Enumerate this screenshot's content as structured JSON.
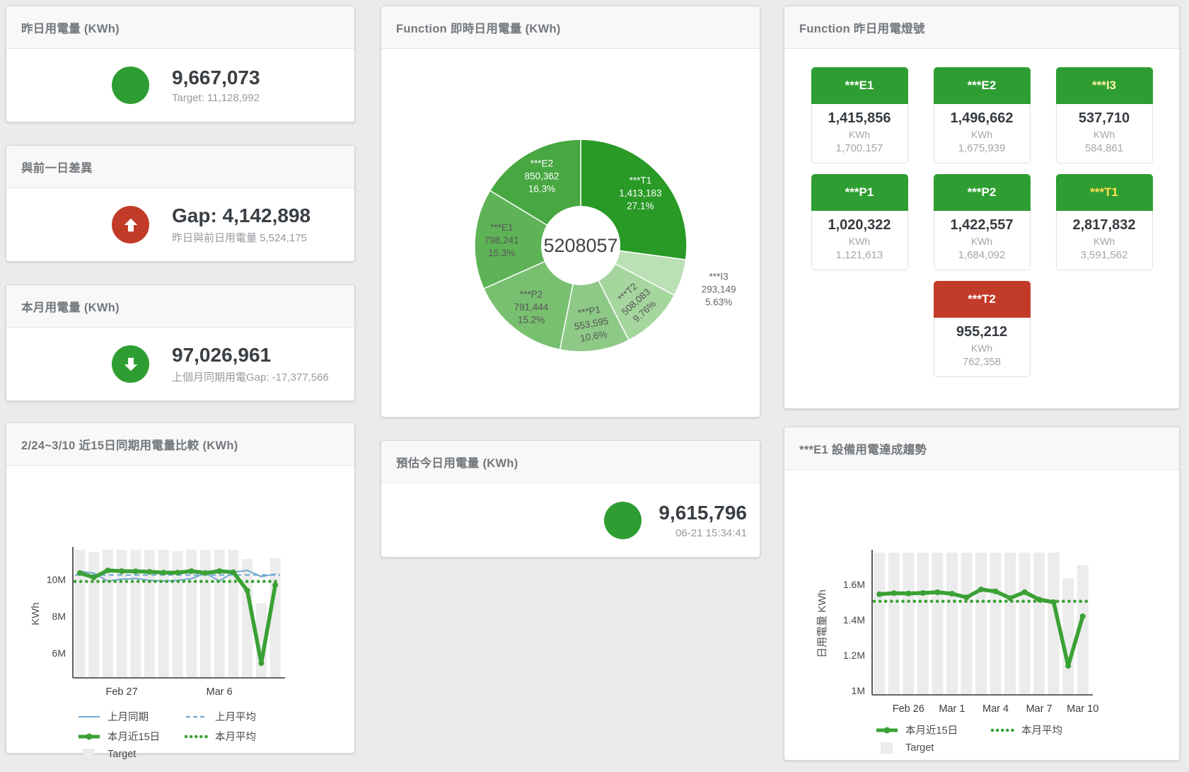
{
  "page": {
    "background": "#ebebeb"
  },
  "colors": {
    "green": "#2f9e32",
    "red": "#c13b28",
    "blue_line": "#6fa8d2",
    "green_line": "#3aa135",
    "bar_gray": "#ececec"
  },
  "cards": {
    "yesterday": {
      "title": "昨日用電量 (KWh)",
      "value": "9,667,073",
      "subtitle": "Target: 11,128,992"
    },
    "day_gap": {
      "title": "與前一日差異",
      "value": "Gap: 4,142,898",
      "subtitle": "昨日與前日用電量 5,524,175"
    },
    "month": {
      "title": "本月用電量 (KWh)",
      "value": "97,026,961",
      "subtitle": "上個月同期用電Gap: -17,377,566"
    },
    "estimate": {
      "title": "預估今日用電量 (KWh)",
      "value": "9,615,796",
      "subtitle": "06-21 15:34:41"
    },
    "realtime_donut": {
      "title": "Function 即時日用電量 (KWh)"
    },
    "lights": {
      "title": "Function 昨日用電燈號",
      "unit_label": "KWh",
      "tiles": [
        {
          "name": "***E1",
          "value": "1,415,856",
          "target": "1,700,157",
          "header_bg": "#2f9e32",
          "header_color": "#ffffff"
        },
        {
          "name": "***E2",
          "value": "1,496,662",
          "target": "1,675,939",
          "header_bg": "#2f9e32",
          "header_color": "#ffffff"
        },
        {
          "name": "***I3",
          "value": "537,710",
          "target": "584,861",
          "header_bg": "#2f9e32",
          "header_color": "#fff3a6"
        },
        {
          "name": "***P1",
          "value": "1,020,322",
          "target": "1,121,613",
          "header_bg": "#2f9e32",
          "header_color": "#ffffff"
        },
        {
          "name": "***P2",
          "value": "1,422,557",
          "target": "1,684,092",
          "header_bg": "#2f9e32",
          "header_color": "#ffffff"
        },
        {
          "name": "***T1",
          "value": "2,817,832",
          "target": "3,591,562",
          "header_bg": "#2f9e32",
          "header_color": "#ffe14d"
        },
        {
          "name": "***T2",
          "value": "955,212",
          "target": "762,358",
          "header_bg": "#c13b28",
          "header_color": "#ffffff"
        }
      ]
    },
    "compare": {
      "title": "2/24~3/10 近15日同期用電量比較 (KWh)"
    },
    "e1_trend": {
      "title": "***E1 設備用電達成趨勢"
    }
  },
  "chart_data": [
    {
      "id": "realtime_donut",
      "type": "pie",
      "title": "Function 即時日用電量 (KWh)",
      "center_total": "5208057",
      "unit": "KWh",
      "slices": [
        {
          "name": "***T1",
          "value": 1413183,
          "pct_label": "27.1%",
          "color": "#2a9a27",
          "label_color": "#ffffff"
        },
        {
          "name": "***I3",
          "value": 293149,
          "pct_label": "5.63%",
          "color": "#bce0b6",
          "label_color": "#666666",
          "label_outside": true
        },
        {
          "name": "***T2",
          "value": 508083,
          "pct_label": "9.76%",
          "color": "#a5d69e",
          "label_color": "#555555",
          "label_rotate": -42
        },
        {
          "name": "***P1",
          "value": 553595,
          "pct_label": "10.6%",
          "color": "#8ec987",
          "label_color": "#555555",
          "label_rotate": -10
        },
        {
          "name": "***P2",
          "value": 791444,
          "pct_label": "15.2%",
          "color": "#78c070",
          "label_color": "#555555"
        },
        {
          "name": "***E1",
          "value": 798241,
          "pct_label": "15.3%",
          "color": "#5eb357",
          "label_color": "#555555"
        },
        {
          "name": "***E2",
          "value": 850362,
          "pct_label": "16.3%",
          "color": "#47a741",
          "label_color": "#ffffff"
        }
      ]
    },
    {
      "id": "compare",
      "type": "line+bar",
      "title": "2/24~3/10 近15日同期用電量比較 (KWh)",
      "ylabel": "KWh",
      "unit": "M KWh",
      "ylim": [
        4.65,
        11.62
      ],
      "yticks": [
        {
          "value": 6,
          "label": "6M"
        },
        {
          "value": 8,
          "label": "8M"
        },
        {
          "value": 10,
          "label": "10M"
        }
      ],
      "xticks": [
        {
          "index": 3,
          "label": "Feb 27"
        },
        {
          "index": 10,
          "label": "Mar 6"
        }
      ],
      "days": [
        "2/24",
        "2/25",
        "2/26",
        "2/27",
        "2/28",
        "3/1",
        "3/2",
        "3/3",
        "3/4",
        "3/5",
        "3/6",
        "3/7",
        "3/8",
        "3/9",
        "3/10"
      ],
      "bars": {
        "name": "Target",
        "color": "#ececec",
        "values": [
          11.62,
          11.5,
          11.62,
          11.62,
          11.62,
          11.62,
          11.62,
          11.56,
          11.62,
          11.62,
          11.62,
          11.62,
          11.12,
          8.72,
          11.16
        ]
      },
      "series": [
        {
          "name": "上月同期",
          "style": "solid",
          "color": "#6fa8d2",
          "width": 2,
          "values": [
            10.45,
            10.35,
            9.92,
            10.02,
            10.06,
            9.96,
            9.92,
            9.96,
            10.05,
            10.35,
            9.92,
            10.4,
            10.5,
            10.16,
            10.3
          ]
        },
        {
          "name": "上月平均",
          "style": "dashed",
          "color": "#6fa8d2",
          "width": 2.2,
          "values": 10.25
        },
        {
          "name": "本月近15日",
          "style": "solid",
          "color": "#3aa135",
          "width": 5.5,
          "markers": true,
          "values": [
            10.36,
            10.12,
            10.5,
            10.46,
            10.45,
            10.42,
            10.38,
            10.38,
            10.46,
            10.36,
            10.46,
            10.4,
            9.4,
            5.45,
            9.7
          ]
        },
        {
          "name": "本月平均",
          "style": "dotted",
          "color": "#3aa135",
          "width": 4.5,
          "values": 9.9
        }
      ],
      "legend_rows": [
        [
          "上月同期",
          "上月平均"
        ],
        [
          "本月近15日",
          "本月平均"
        ],
        [
          "Target"
        ]
      ]
    },
    {
      "id": "e1_trend",
      "type": "line+bar",
      "title": "***E1 設備用電達成趨勢",
      "ylabel": "日用電量 KWh",
      "unit": "M KWh",
      "ylim": [
        0.976,
        1.78
      ],
      "yticks": [
        {
          "value": 1,
          "label": "1M"
        },
        {
          "value": 1.2,
          "label": "1.2M"
        },
        {
          "value": 1.4,
          "label": "1.4M"
        },
        {
          "value": 1.6,
          "label": "1.6M"
        }
      ],
      "xticks": [
        {
          "index": 2,
          "label": "Feb 26"
        },
        {
          "index": 5,
          "label": "Mar 1"
        },
        {
          "index": 8,
          "label": "Mar 4"
        },
        {
          "index": 11,
          "label": "Mar 7"
        },
        {
          "index": 14,
          "label": "Mar 10"
        }
      ],
      "days": [
        "2/24",
        "2/25",
        "2/26",
        "2/27",
        "2/28",
        "3/1",
        "3/2",
        "3/3",
        "3/4",
        "3/5",
        "3/6",
        "3/7",
        "3/8",
        "3/9",
        "3/10"
      ],
      "bars": {
        "name": "Target",
        "color": "#ececec",
        "values": [
          1.78,
          1.78,
          1.78,
          1.78,
          1.78,
          1.78,
          1.78,
          1.78,
          1.78,
          1.78,
          1.78,
          1.78,
          1.78,
          1.635,
          1.71
        ]
      },
      "series": [
        {
          "name": "本月近15日",
          "style": "solid",
          "color": "#3aa135",
          "width": 5.5,
          "markers": true,
          "values": [
            1.545,
            1.551,
            1.549,
            1.552,
            1.556,
            1.548,
            1.527,
            1.572,
            1.561,
            1.523,
            1.557,
            1.515,
            1.5,
            1.14,
            1.42
          ]
        },
        {
          "name": "本月平均",
          "style": "dotted",
          "color": "#3aa135",
          "width": 4.5,
          "values": 1.505
        }
      ],
      "legend_rows": [
        [
          "本月近15日",
          "本月平均"
        ],
        [
          "Target"
        ]
      ]
    }
  ]
}
